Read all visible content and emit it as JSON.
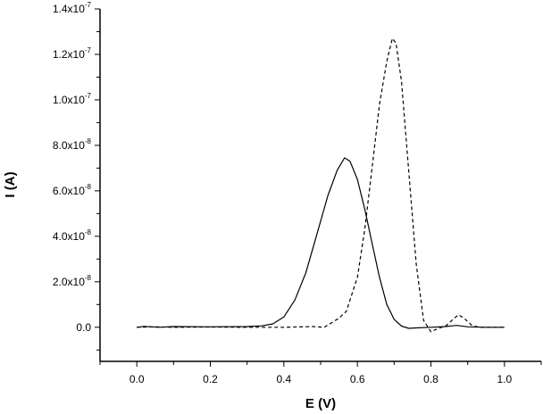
{
  "chart_data": {
    "type": "line",
    "title": "",
    "xlabel": "E (V)",
    "ylabel": "I (A)",
    "xlim": [
      -0.1,
      1.1
    ],
    "ylim": [
      -1.5e-08,
      1.4e-07
    ],
    "x_ticks": [
      {
        "value": 0.0,
        "label": "0.0"
      },
      {
        "value": 0.2,
        "label": "0.2"
      },
      {
        "value": 0.4,
        "label": "0.4"
      },
      {
        "value": 0.6,
        "label": "0.6"
      },
      {
        "value": 0.8,
        "label": "0.8"
      },
      {
        "value": 1.0,
        "label": "1.0"
      }
    ],
    "y_ticks": [
      {
        "value": 0.0,
        "mantissa": "0.0",
        "exponent": ""
      },
      {
        "value": 2e-08,
        "mantissa": "2.0x10",
        "exponent": "-8"
      },
      {
        "value": 4e-08,
        "mantissa": "4.0x10",
        "exponent": "-8"
      },
      {
        "value": 6e-08,
        "mantissa": "6.0x10",
        "exponent": "-8"
      },
      {
        "value": 8e-08,
        "mantissa": "8.0x10",
        "exponent": "-8"
      },
      {
        "value": 1e-07,
        "mantissa": "1.0x10",
        "exponent": "-7"
      },
      {
        "value": 1.2e-07,
        "mantissa": "1.2x10",
        "exponent": "-7"
      },
      {
        "value": 1.4e-07,
        "mantissa": "1.4x10",
        "exponent": "-7"
      }
    ],
    "grid": false,
    "series": [
      {
        "style": "solid",
        "color": "#000000",
        "points": [
          [
            0.0,
            0.0
          ],
          [
            0.02,
            4e-10
          ],
          [
            0.06,
            0.0
          ],
          [
            0.1,
            3e-10
          ],
          [
            0.2,
            2e-10
          ],
          [
            0.3,
            3e-10
          ],
          [
            0.34,
            6e-10
          ],
          [
            0.37,
            1.5e-09
          ],
          [
            0.4,
            4.5e-09
          ],
          [
            0.43,
            1.2e-08
          ],
          [
            0.46,
            2.4e-08
          ],
          [
            0.49,
            4.1e-08
          ],
          [
            0.52,
            5.8e-08
          ],
          [
            0.545,
            6.9e-08
          ],
          [
            0.565,
            7.45e-08
          ],
          [
            0.58,
            7.3e-08
          ],
          [
            0.6,
            6.5e-08
          ],
          [
            0.62,
            5.2e-08
          ],
          [
            0.64,
            3.7e-08
          ],
          [
            0.66,
            2.2e-08
          ],
          [
            0.68,
            1e-08
          ],
          [
            0.7,
            3.5e-09
          ],
          [
            0.72,
            5e-10
          ],
          [
            0.74,
            -5e-10
          ],
          [
            0.76,
            -3e-10
          ],
          [
            0.8,
            0.0
          ],
          [
            0.84,
            3e-10
          ],
          [
            0.87,
            8e-10
          ],
          [
            0.9,
            2e-10
          ],
          [
            0.95,
            0.0
          ],
          [
            1.0,
            0.0
          ]
        ]
      },
      {
        "style": "dashed",
        "color": "#000000",
        "points": [
          [
            0.0,
            0.0
          ],
          [
            0.05,
            2e-10
          ],
          [
            0.1,
            0.0
          ],
          [
            0.2,
            1e-10
          ],
          [
            0.3,
            0.0
          ],
          [
            0.4,
            0.0
          ],
          [
            0.48,
            3e-10
          ],
          [
            0.51,
            0.0
          ],
          [
            0.53,
            2e-09
          ],
          [
            0.55,
            4e-09
          ],
          [
            0.57,
            7e-09
          ],
          [
            0.6,
            2.2e-08
          ],
          [
            0.62,
            4.3e-08
          ],
          [
            0.64,
            7e-08
          ],
          [
            0.66,
            9.8e-08
          ],
          [
            0.68,
            1.17e-07
          ],
          [
            0.695,
            1.27e-07
          ],
          [
            0.705,
            1.25e-07
          ],
          [
            0.72,
            1.08e-07
          ],
          [
            0.74,
            6.8e-08
          ],
          [
            0.76,
            2.8e-08
          ],
          [
            0.78,
            3e-09
          ],
          [
            0.8,
            -2e-09
          ],
          [
            0.82,
            -5e-10
          ],
          [
            0.84,
            5e-10
          ],
          [
            0.86,
            3.5e-09
          ],
          [
            0.875,
            5.5e-09
          ],
          [
            0.89,
            4e-09
          ],
          [
            0.91,
            1e-09
          ],
          [
            0.93,
            0.0
          ],
          [
            1.0,
            0.0
          ]
        ]
      }
    ]
  }
}
